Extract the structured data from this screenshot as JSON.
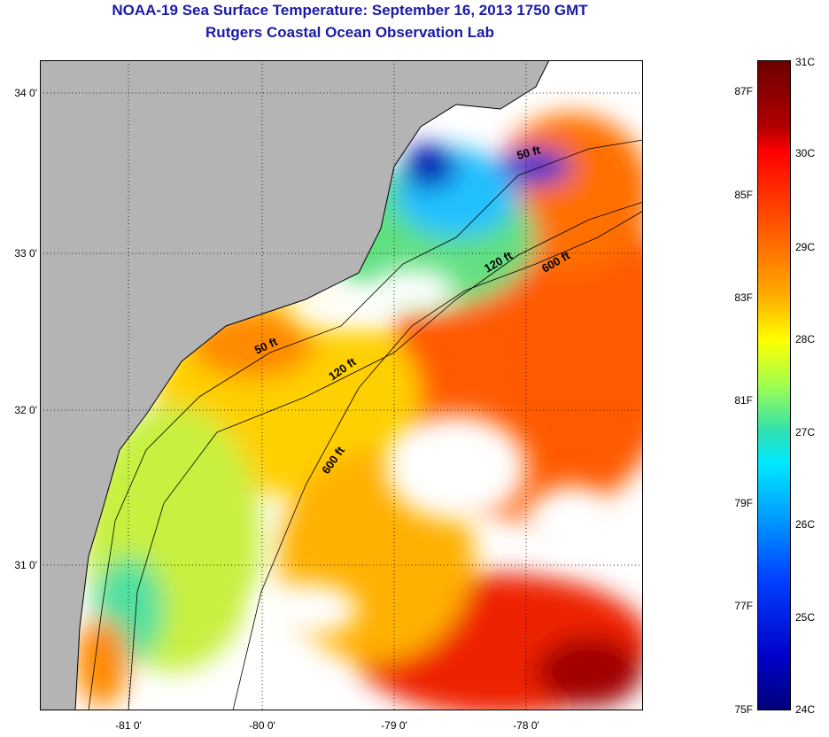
{
  "title": "NOAA-19 Sea Surface Temperature:  September 16, 2013 1750 GMT",
  "subtitle": "Rutgers Coastal Ocean Observation Lab",
  "lat_labels": [
    "34 0'",
    "33 0'",
    "32 0'",
    "31 0'"
  ],
  "lon_labels": [
    "-81 0'",
    "-80 0'",
    "-79 0'",
    "-78 0'"
  ],
  "contours": {
    "c50a": "50 ft",
    "c50b": "50 ft",
    "c120a": "120 ft",
    "c120b": "120 ft",
    "c600a": "600 ft",
    "c600b": "600 ft"
  },
  "colorbar": {
    "celsius": [
      "31C",
      "30C",
      "29C",
      "28C",
      "27C",
      "26C",
      "25C",
      "24C"
    ],
    "fahrenheit": [
      "87F",
      "85F",
      "83F",
      "81F",
      "79F",
      "77F",
      "75F"
    ]
  },
  "colors": {
    "land": "#b4b4b4",
    "title": "#1a1aa8"
  }
}
